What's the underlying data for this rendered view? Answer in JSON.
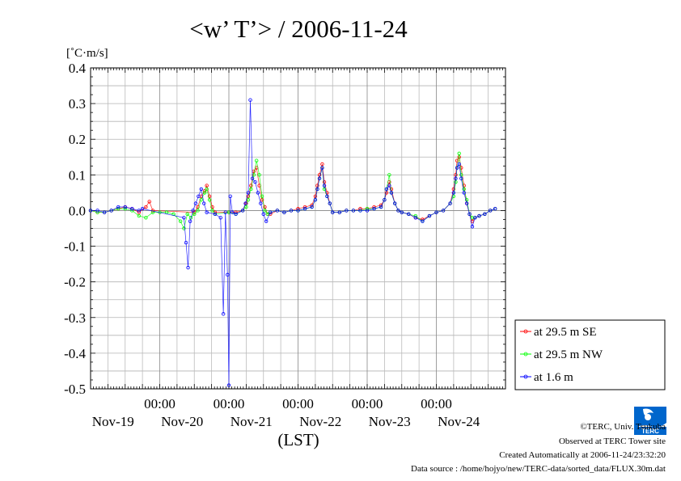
{
  "chart_data": {
    "type": "line",
    "title": "<w’ T’> / 2006-11-24",
    "ylabel": "[˚C·m/s]",
    "xlabel": "(LST)",
    "ylim": [
      -0.5,
      0.4
    ],
    "yticks": [
      0.4,
      0.3,
      0.2,
      0.1,
      0.0,
      -0.1,
      -0.2,
      -0.3,
      -0.4,
      -0.5
    ],
    "ytick_labels": [
      "0.4",
      "0.3",
      "0.2",
      "0.1",
      "0.0",
      "-0.1",
      "-0.2",
      "-0.3",
      "-0.4",
      "-0.5"
    ],
    "xlim": [
      0,
      6
    ],
    "x_unit": "days from Nov-19 00:00 LST",
    "xticks": [
      {
        "x": 1,
        "time": "00:00",
        "date": "Nov-20"
      },
      {
        "x": 2,
        "time": "00:00",
        "date": "Nov-21"
      },
      {
        "x": 3,
        "time": "00:00",
        "date": "Nov-22"
      },
      {
        "x": 4,
        "time": "00:00",
        "date": "Nov-23"
      },
      {
        "x": 5,
        "time": "00:00",
        "date": "Nov-24"
      }
    ],
    "xdate_labels": [
      {
        "x": 0.5,
        "label": "Nov-19"
      },
      {
        "x": 1.5,
        "label": "Nov-20"
      },
      {
        "x": 2.5,
        "label": "Nov-21"
      },
      {
        "x": 3.5,
        "label": "Nov-22"
      },
      {
        "x": 4.5,
        "label": "Nov-23"
      },
      {
        "x": 5.5,
        "label": "Nov-24"
      }
    ],
    "grid": true,
    "legend_position": "bottom-right outside",
    "series": [
      {
        "name": "at 29.5 m SE",
        "color": "#ff0000",
        "points": [
          [
            0.0,
            0.0
          ],
          [
            0.1,
            -0.005
          ],
          [
            0.2,
            -0.005
          ],
          [
            0.3,
            0.0
          ],
          [
            0.4,
            0.005
          ],
          [
            0.5,
            0.01
          ],
          [
            0.6,
            0.005
          ],
          [
            0.7,
            -0.005
          ],
          [
            0.8,
            0.01
          ],
          [
            0.85,
            0.025
          ],
          [
            0.9,
            0.0
          ],
          [
            1.5,
            -0.005
          ],
          [
            1.55,
            0.01
          ],
          [
            1.6,
            0.04
          ],
          [
            1.65,
            0.055
          ],
          [
            1.68,
            0.07
          ],
          [
            1.72,
            0.04
          ],
          [
            1.76,
            0.01
          ],
          [
            1.8,
            -0.005
          ],
          [
            2.0,
            -0.005
          ],
          [
            2.1,
            -0.005
          ],
          [
            2.2,
            0.0
          ],
          [
            2.25,
            0.02
          ],
          [
            2.28,
            0.04
          ],
          [
            2.32,
            0.07
          ],
          [
            2.36,
            0.11
          ],
          [
            2.4,
            0.12
          ],
          [
            2.44,
            0.07
          ],
          [
            2.48,
            0.03
          ],
          [
            2.52,
            0.01
          ],
          [
            2.56,
            -0.01
          ],
          [
            2.6,
            -0.01
          ],
          [
            2.7,
            0.0
          ],
          [
            2.8,
            -0.005
          ],
          [
            2.9,
            0.0
          ],
          [
            3.0,
            0.005
          ],
          [
            3.1,
            0.01
          ],
          [
            3.2,
            0.015
          ],
          [
            3.25,
            0.04
          ],
          [
            3.28,
            0.07
          ],
          [
            3.31,
            0.1
          ],
          [
            3.35,
            0.13
          ],
          [
            3.38,
            0.08
          ],
          [
            3.42,
            0.05
          ],
          [
            3.46,
            0.02
          ],
          [
            3.5,
            -0.005
          ],
          [
            3.6,
            -0.005
          ],
          [
            3.7,
            0.0
          ],
          [
            3.8,
            0.0
          ],
          [
            3.9,
            0.005
          ],
          [
            4.0,
            0.005
          ],
          [
            4.1,
            0.01
          ],
          [
            4.2,
            0.015
          ],
          [
            4.25,
            0.03
          ],
          [
            4.28,
            0.05
          ],
          [
            4.32,
            0.08
          ],
          [
            4.35,
            0.06
          ],
          [
            4.4,
            0.02
          ],
          [
            4.45,
            0.0
          ],
          [
            4.5,
            -0.005
          ],
          [
            4.6,
            -0.01
          ],
          [
            4.7,
            -0.02
          ],
          [
            4.8,
            -0.025
          ],
          [
            4.9,
            -0.015
          ],
          [
            5.0,
            -0.005
          ],
          [
            5.1,
            0.0
          ],
          [
            5.2,
            0.02
          ],
          [
            5.25,
            0.06
          ],
          [
            5.28,
            0.1
          ],
          [
            5.3,
            0.14
          ],
          [
            5.33,
            0.15
          ],
          [
            5.36,
            0.12
          ],
          [
            5.4,
            0.07
          ],
          [
            5.44,
            0.02
          ],
          [
            5.48,
            -0.01
          ],
          [
            5.52,
            -0.03
          ],
          [
            5.56,
            -0.02
          ],
          [
            5.62,
            -0.015
          ],
          [
            5.7,
            -0.01
          ],
          [
            5.78,
            0.0
          ],
          [
            5.85,
            0.005
          ]
        ]
      },
      {
        "name": "at 29.5 m NW",
        "color": "#00ff00",
        "points": [
          [
            0.0,
            0.0
          ],
          [
            0.1,
            -0.005
          ],
          [
            0.2,
            -0.005
          ],
          [
            0.3,
            0.0
          ],
          [
            0.4,
            0.005
          ],
          [
            0.5,
            0.005
          ],
          [
            0.6,
            0.0
          ],
          [
            0.7,
            -0.015
          ],
          [
            0.8,
            -0.02
          ],
          [
            0.9,
            -0.005
          ],
          [
            1.0,
            -0.005
          ],
          [
            1.1,
            -0.005
          ],
          [
            1.2,
            -0.01
          ],
          [
            1.3,
            -0.03
          ],
          [
            1.35,
            -0.05
          ],
          [
            1.4,
            -0.01
          ],
          [
            1.45,
            -0.02
          ],
          [
            1.5,
            -0.01
          ],
          [
            1.55,
            0.0
          ],
          [
            1.6,
            0.03
          ],
          [
            1.65,
            0.05
          ],
          [
            1.68,
            0.06
          ],
          [
            1.72,
            0.03
          ],
          [
            1.76,
            0.0
          ],
          [
            1.8,
            -0.01
          ],
          [
            2.0,
            -0.005
          ],
          [
            2.1,
            -0.01
          ],
          [
            2.2,
            0.0
          ],
          [
            2.25,
            0.01
          ],
          [
            2.28,
            0.03
          ],
          [
            2.32,
            0.06
          ],
          [
            2.36,
            0.1
          ],
          [
            2.4,
            0.14
          ],
          [
            2.44,
            0.1
          ],
          [
            2.48,
            0.04
          ],
          [
            2.52,
            0.0
          ],
          [
            2.56,
            -0.01
          ],
          [
            2.6,
            -0.005
          ],
          [
            2.7,
            0.0
          ],
          [
            2.8,
            -0.005
          ],
          [
            2.9,
            0.0
          ],
          [
            3.0,
            0.0
          ],
          [
            3.1,
            0.005
          ],
          [
            3.2,
            0.01
          ],
          [
            3.25,
            0.03
          ],
          [
            3.28,
            0.06
          ],
          [
            3.31,
            0.09
          ],
          [
            3.35,
            0.12
          ],
          [
            3.38,
            0.06
          ],
          [
            3.42,
            0.04
          ],
          [
            3.46,
            0.02
          ],
          [
            3.5,
            -0.005
          ],
          [
            3.6,
            -0.005
          ],
          [
            3.7,
            0.0
          ],
          [
            3.8,
            0.0
          ],
          [
            3.9,
            0.0
          ],
          [
            4.0,
            0.005
          ],
          [
            4.1,
            0.005
          ],
          [
            4.2,
            0.01
          ],
          [
            4.25,
            0.03
          ],
          [
            4.28,
            0.06
          ],
          [
            4.32,
            0.1
          ],
          [
            4.35,
            0.05
          ],
          [
            4.4,
            0.02
          ],
          [
            4.45,
            0.0
          ],
          [
            4.5,
            -0.005
          ],
          [
            4.6,
            -0.01
          ],
          [
            4.7,
            -0.015
          ],
          [
            4.8,
            -0.03
          ],
          [
            4.9,
            -0.015
          ],
          [
            5.0,
            -0.005
          ],
          [
            5.1,
            0.0
          ],
          [
            5.2,
            0.02
          ],
          [
            5.25,
            0.04
          ],
          [
            5.28,
            0.08
          ],
          [
            5.3,
            0.12
          ],
          [
            5.33,
            0.16
          ],
          [
            5.36,
            0.1
          ],
          [
            5.4,
            0.06
          ],
          [
            5.44,
            0.03
          ],
          [
            5.48,
            -0.01
          ],
          [
            5.52,
            -0.02
          ],
          [
            5.56,
            -0.02
          ],
          [
            5.62,
            -0.015
          ],
          [
            5.7,
            -0.01
          ],
          [
            5.78,
            0.0
          ],
          [
            5.85,
            0.005
          ]
        ]
      },
      {
        "name": "at 1.6 m",
        "color": "#0000ff",
        "points": [
          [
            0.0,
            0.0
          ],
          [
            0.1,
            0.0
          ],
          [
            0.2,
            -0.005
          ],
          [
            0.3,
            0.0
          ],
          [
            0.4,
            0.01
          ],
          [
            0.5,
            0.01
          ],
          [
            0.6,
            0.005
          ],
          [
            0.7,
            0.0
          ],
          [
            0.75,
            0.005
          ],
          [
            1.35,
            -0.02
          ],
          [
            1.38,
            -0.09
          ],
          [
            1.41,
            -0.16
          ],
          [
            1.44,
            -0.03
          ],
          [
            1.48,
            0.0
          ],
          [
            1.52,
            0.02
          ],
          [
            1.56,
            0.04
          ],
          [
            1.6,
            0.06
          ],
          [
            1.64,
            0.02
          ],
          [
            1.68,
            -0.005
          ],
          [
            1.8,
            -0.01
          ],
          [
            1.88,
            -0.02
          ],
          [
            1.92,
            -0.29
          ],
          [
            1.95,
            -0.005
          ],
          [
            1.98,
            -0.18
          ],
          [
            2.0,
            -0.49
          ],
          [
            2.02,
            0.04
          ],
          [
            2.05,
            -0.005
          ],
          [
            2.1,
            -0.01
          ],
          [
            2.2,
            0.0
          ],
          [
            2.24,
            0.02
          ],
          [
            2.28,
            0.05
          ],
          [
            2.31,
            0.31
          ],
          [
            2.34,
            0.09
          ],
          [
            2.38,
            0.08
          ],
          [
            2.42,
            0.05
          ],
          [
            2.46,
            0.02
          ],
          [
            2.5,
            -0.01
          ],
          [
            2.54,
            -0.03
          ],
          [
            2.6,
            -0.005
          ],
          [
            2.7,
            0.0
          ],
          [
            2.8,
            -0.005
          ],
          [
            2.9,
            0.0
          ],
          [
            3.0,
            0.0
          ],
          [
            3.1,
            0.005
          ],
          [
            3.2,
            0.01
          ],
          [
            3.25,
            0.03
          ],
          [
            3.28,
            0.06
          ],
          [
            3.31,
            0.09
          ],
          [
            3.35,
            0.12
          ],
          [
            3.38,
            0.07
          ],
          [
            3.42,
            0.04
          ],
          [
            3.46,
            0.02
          ],
          [
            3.5,
            -0.005
          ],
          [
            3.6,
            -0.005
          ],
          [
            3.7,
            0.0
          ],
          [
            3.8,
            0.0
          ],
          [
            3.9,
            0.0
          ],
          [
            4.0,
            0.0
          ],
          [
            4.1,
            0.005
          ],
          [
            4.2,
            0.01
          ],
          [
            4.25,
            0.03
          ],
          [
            4.28,
            0.06
          ],
          [
            4.32,
            0.07
          ],
          [
            4.35,
            0.05
          ],
          [
            4.4,
            0.02
          ],
          [
            4.45,
            0.0
          ],
          [
            4.5,
            -0.005
          ],
          [
            4.6,
            -0.01
          ],
          [
            4.7,
            -0.02
          ],
          [
            4.8,
            -0.03
          ],
          [
            4.9,
            -0.015
          ],
          [
            5.0,
            -0.005
          ],
          [
            5.1,
            0.0
          ],
          [
            5.2,
            0.02
          ],
          [
            5.25,
            0.05
          ],
          [
            5.28,
            0.09
          ],
          [
            5.3,
            0.12
          ],
          [
            5.33,
            0.13
          ],
          [
            5.36,
            0.09
          ],
          [
            5.4,
            0.05
          ],
          [
            5.44,
            0.02
          ],
          [
            5.48,
            -0.01
          ],
          [
            5.52,
            -0.045
          ],
          [
            5.56,
            -0.02
          ],
          [
            5.62,
            -0.015
          ],
          [
            5.7,
            -0.01
          ],
          [
            5.78,
            0.0
          ],
          [
            5.85,
            0.005
          ]
        ]
      }
    ]
  },
  "credits": {
    "line1": "©TERC, Univ. Tsukuba",
    "line2": "Observed at TERC Tower site",
    "line3": "Created Automatically at 2006-11-24/23:32:20",
    "line4": "Data source : /home/hojyo/new/TERC-data/sorted_data/FLUX.30m.dat"
  },
  "logo": {
    "text": "TERC",
    "color": "#0066cc"
  }
}
